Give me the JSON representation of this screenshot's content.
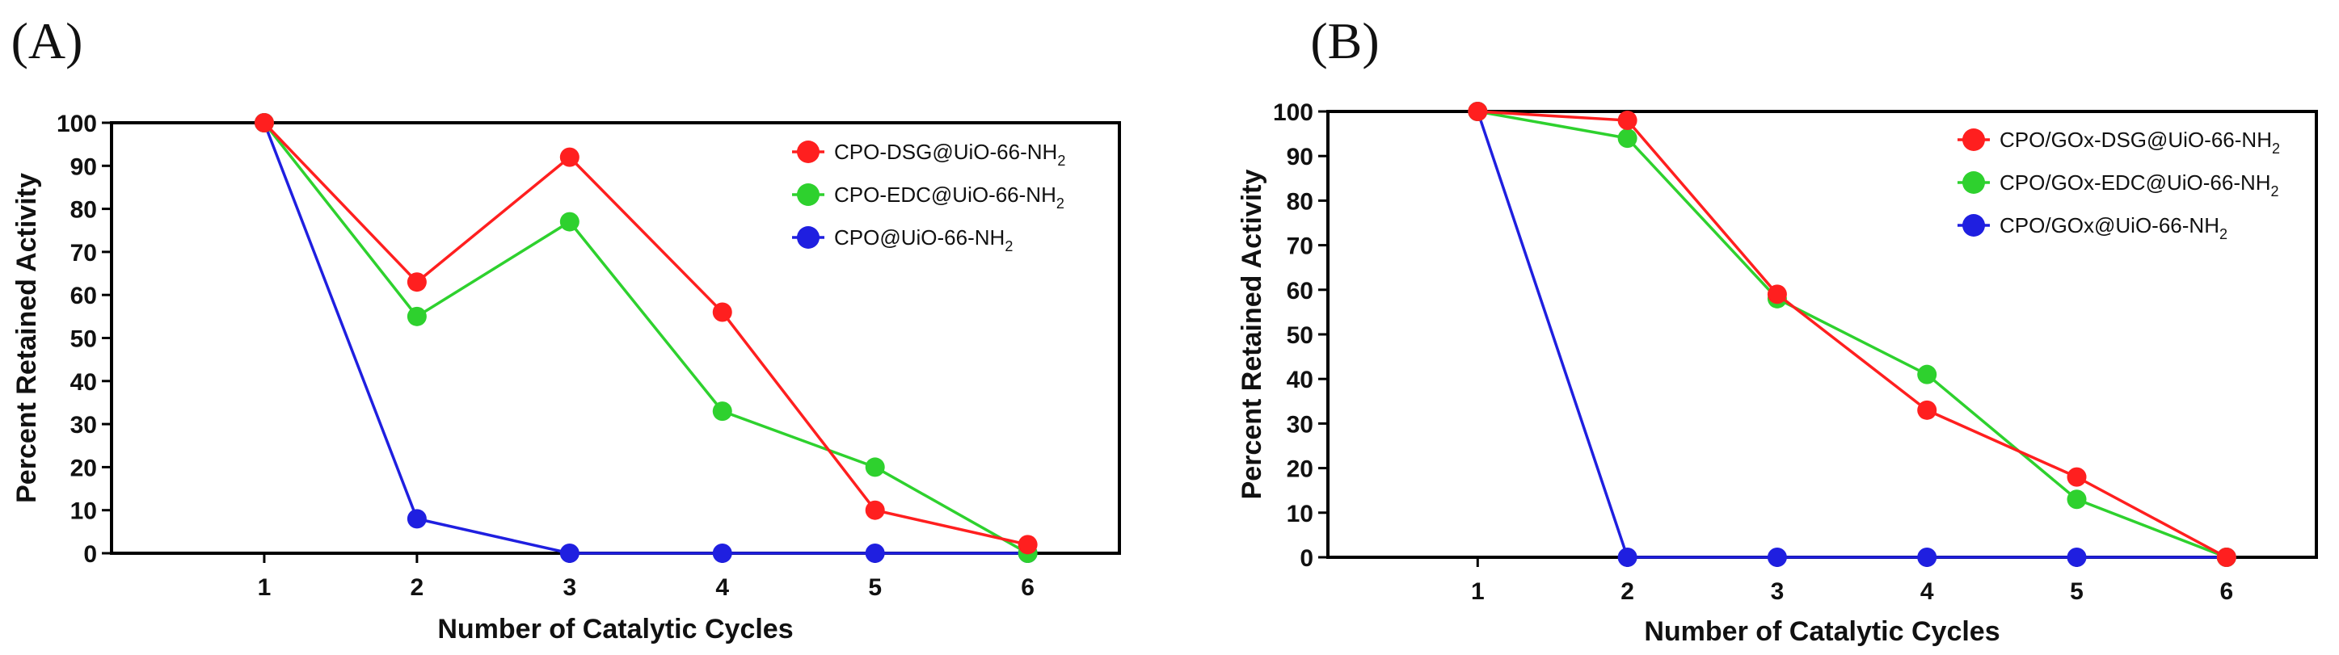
{
  "chart_data": [
    {
      "panel_label": "(A)",
      "type": "line",
      "x": [
        1,
        2,
        3,
        4,
        5,
        6
      ],
      "xlabel": "Number of Catalytic Cycles",
      "ylabel": "Percent  Retained Activity",
      "xlim": [
        0.0,
        6.6
      ],
      "ylim": [
        0,
        100
      ],
      "yticks": [
        0,
        10,
        20,
        30,
        40,
        50,
        60,
        70,
        80,
        90,
        100
      ],
      "grid": false,
      "legend_position": "top-right",
      "series": [
        {
          "name": "CPO-DSG@UiO-66-NH",
          "subscript": "2",
          "color": "#ff1f1f",
          "values": [
            100,
            63,
            92,
            56,
            10,
            2
          ]
        },
        {
          "name": "CPO-EDC@UiO-66-NH",
          "subscript": "2",
          "color": "#2ed12e",
          "values": [
            100,
            55,
            77,
            33,
            20,
            0
          ]
        },
        {
          "name": "CPO@UiO-66-NH",
          "subscript": "2",
          "color": "#1f1fe0",
          "values": [
            100,
            8,
            0,
            0,
            0,
            0
          ]
        }
      ]
    },
    {
      "panel_label": "(B)",
      "type": "line",
      "x": [
        1,
        2,
        3,
        4,
        5,
        6
      ],
      "xlabel": "Number of Catalytic Cycles",
      "ylabel": "Percent  Retained Activity",
      "xlim": [
        0.0,
        6.6
      ],
      "ylim": [
        0,
        100
      ],
      "yticks": [
        0,
        10,
        20,
        30,
        40,
        50,
        60,
        70,
        80,
        90,
        100
      ],
      "grid": false,
      "legend_position": "top-right",
      "series": [
        {
          "name": "CPO/GOx-DSG@UiO-66-NH",
          "subscript": "2",
          "color": "#ff1f1f",
          "values": [
            100,
            98,
            59,
            33,
            18,
            0
          ]
        },
        {
          "name": "CPO/GOx-EDC@UiO-66-NH",
          "subscript": "2",
          "color": "#2ed12e",
          "values": [
            100,
            94,
            58,
            41,
            13,
            0
          ]
        },
        {
          "name": "CPO/GOx@UiO-66-NH",
          "subscript": "2",
          "color": "#1f1fe0",
          "values": [
            100,
            0,
            0,
            0,
            0,
            0
          ]
        }
      ]
    }
  ]
}
